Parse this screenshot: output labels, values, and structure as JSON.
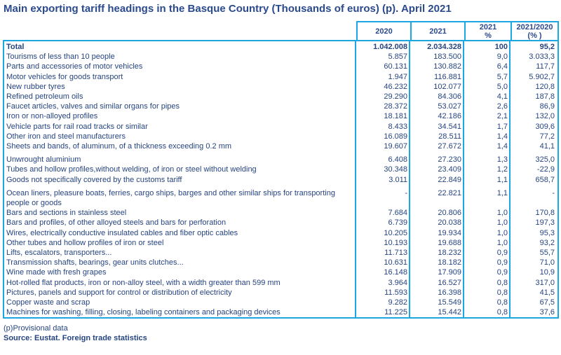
{
  "title": "Main exporting tariff headings in the Basque Country (Thousands of euros) (p). April 2021",
  "chart_data": {
    "type": "table",
    "title": "Main exporting tariff headings in the Basque Country (Thousands of euros) (p). April 2021",
    "columns": [
      {
        "id": "y2020",
        "label": "2020"
      },
      {
        "id": "y2021",
        "label": "2021"
      },
      {
        "id": "pct",
        "label": "2021\n%"
      },
      {
        "id": "yoy",
        "label": "2021/2020\n(% )"
      }
    ],
    "rows": [
      {
        "label": "Total",
        "y2020": "1.042.008",
        "y2021": "2.034.328",
        "pct": "100",
        "yoy": "95,2"
      },
      {
        "label": "Tourisms of less than 10 people",
        "y2020": "5.857",
        "y2021": "183.500",
        "pct": "9,0",
        "yoy": "3.033,3"
      },
      {
        "label": "Parts and accessories of motor vehicles",
        "y2020": "60.131",
        "y2021": "130.882",
        "pct": "6,4",
        "yoy": "117,7"
      },
      {
        "label": "Motor vehicles for goods transport",
        "y2020": "1.947",
        "y2021": "116.881",
        "pct": "5,7",
        "yoy": "5.902,7"
      },
      {
        "label": "New rubber tyres",
        "y2020": "46.232",
        "y2021": "102.077",
        "pct": "5,0",
        "yoy": "120,8"
      },
      {
        "label": "Refined petroleum oils",
        "y2020": "29.290",
        "y2021": "84.306",
        "pct": "4,1",
        "yoy": "187,8"
      },
      {
        "label": "Faucet articles, valves and similar organs for pipes",
        "y2020": "28.372",
        "y2021": "53.027",
        "pct": "2,6",
        "yoy": "86,9"
      },
      {
        "label": "Iron or non-alloyed profiles",
        "y2020": "18.181",
        "y2021": "42.186",
        "pct": "2,1",
        "yoy": "132,0"
      },
      {
        "label": "Vehicle parts for rail road tracks or similar",
        "y2020": "8.433",
        "y2021": "34.541",
        "pct": "1,7",
        "yoy": "309,6"
      },
      {
        "label": "Other iron and steel manufacturers",
        "y2020": "16.089",
        "y2021": "28.511",
        "pct": "1,4",
        "yoy": "77,2"
      },
      {
        "label": "Sheets and bands, of aluminum, of a thickness exceeding 0.2 mm",
        "y2020": "19.607",
        "y2021": "27.672",
        "pct": "1,4",
        "yoy": "41,1"
      },
      {
        "label": "Unwrought aluminium",
        "y2020": "6.408",
        "y2021": "27.230",
        "pct": "1,3",
        "yoy": "325,0"
      },
      {
        "label": "Tubes and hollow profiles,without welding, of iron or steel without welding",
        "y2020": "30.348",
        "y2021": "23.409",
        "pct": "1,2",
        "yoy": "-22,9"
      },
      {
        "label": "Goods not specifically covered by the customs tariff",
        "y2020": "3.011",
        "y2021": "22.849",
        "pct": "1,1",
        "yoy": "658,7"
      },
      {
        "label": "Ocean liners, pleasure boats, ferries, cargo ships, barges and other similar ships for transporting people or goods",
        "y2020": "-",
        "y2021": "22.821",
        "pct": "1,1",
        "yoy": "-"
      },
      {
        "label": "Bars and sections in stainless steel",
        "y2020": "7.684",
        "y2021": "20.806",
        "pct": "1,0",
        "yoy": "170,8"
      },
      {
        "label": "Bars and profiles, of other alloyed steels and bars for perforation",
        "y2020": "6.739",
        "y2021": "20.038",
        "pct": "1,0",
        "yoy": "197,3"
      },
      {
        "label": "Wires, electrically conductive insulated cables and fiber optic cables",
        "y2020": "10.205",
        "y2021": "19.934",
        "pct": "1,0",
        "yoy": "95,3"
      },
      {
        "label": "Other tubes and hollow profiles of iron or steel",
        "y2020": "10.193",
        "y2021": "19.688",
        "pct": "1,0",
        "yoy": "93,2"
      },
      {
        "label": "Lifts, escalators, transporters...",
        "y2020": "11.713",
        "y2021": "18.232",
        "pct": "0,9",
        "yoy": "55,7"
      },
      {
        "label": "Transmission shafts, bearings, gear units clutches...",
        "y2020": "10.631",
        "y2021": "18.182",
        "pct": "0,9",
        "yoy": "71,0"
      },
      {
        "label": "Wine made with fresh grapes",
        "y2020": "16.148",
        "y2021": "17.909",
        "pct": "0,9",
        "yoy": "10,9"
      },
      {
        "label": "Hot-rolled flat products, iron or non-alloy steel, with a width greater than 599 mm",
        "y2020": "3.964",
        "y2021": "16.527",
        "pct": "0,8",
        "yoy": "317,0"
      },
      {
        "label": "Pictures, panels and support for control or distribution of electricity",
        "y2020": "11.593",
        "y2021": "16.398",
        "pct": "0,8",
        "yoy": "41,5"
      },
      {
        "label": "Copper waste and scrap",
        "y2020": "9.282",
        "y2021": "15.549",
        "pct": "0,8",
        "yoy": "67,5"
      },
      {
        "label": "Machines for washing, filling, closing, labeling containers and packaging devices",
        "y2020": "11.225",
        "y2021": "15.442",
        "pct": "0,8",
        "yoy": "37,6"
      }
    ]
  },
  "footnotes": {
    "provisional": "(p)Provisional data",
    "source": "Source: Eustat. Foreign trade statistics"
  },
  "colors": {
    "border": "#1CA7E3",
    "text": "#264480",
    "title": "#2B4A8E",
    "background": "#FFFFFF"
  }
}
